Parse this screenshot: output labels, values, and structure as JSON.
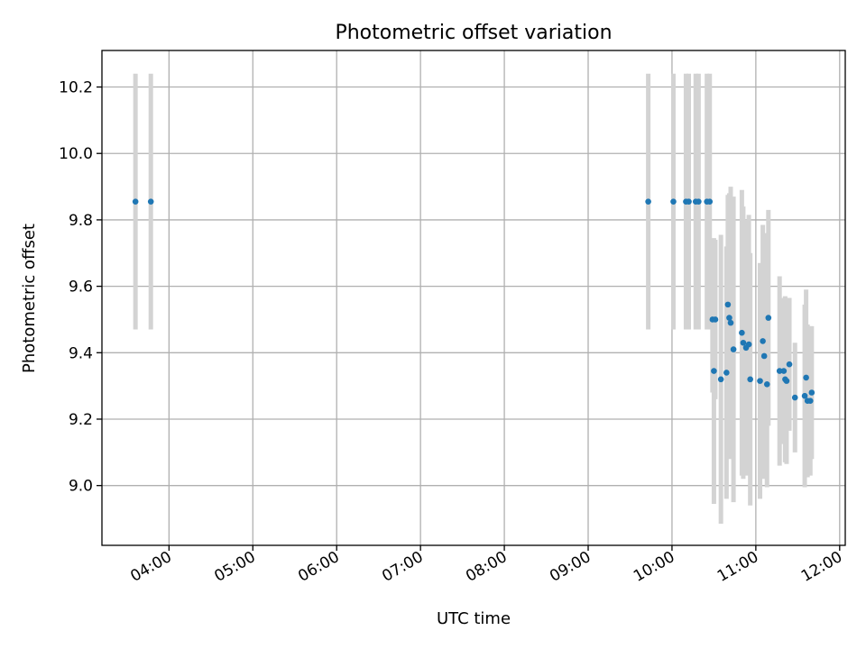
{
  "chart_data": {
    "type": "scatter",
    "title": "Photometric offset variation",
    "xlabel": "UTC time",
    "ylabel": "Photometric offset",
    "x_axis_type": "time",
    "xlim": [
      "03:12",
      "12:04"
    ],
    "ylim": [
      8.82,
      10.31
    ],
    "xticks": [
      "04:00",
      "05:00",
      "06:00",
      "07:00",
      "08:00",
      "09:00",
      "10:00",
      "11:00",
      "12:00"
    ],
    "yticks": [
      9.0,
      9.2,
      9.4,
      9.6,
      9.8,
      10.0,
      10.2
    ],
    "grid": true,
    "legend": "none",
    "colors": {
      "points": "#1f77b4",
      "errorbars": "#d3d3d3"
    },
    "points": [
      {
        "x": "03:36",
        "y": 9.855,
        "err": 0.385
      },
      {
        "x": "03:47",
        "y": 9.855,
        "err": 0.385
      },
      {
        "x": "09:43",
        "y": 9.855,
        "err": 0.385
      },
      {
        "x": "10:01",
        "y": 9.855,
        "err": 0.385
      },
      {
        "x": "10:10",
        "y": 9.855,
        "err": 0.385
      },
      {
        "x": "10:12",
        "y": 9.855,
        "err": 0.385
      },
      {
        "x": "10:17",
        "y": 9.855,
        "err": 0.385
      },
      {
        "x": "10:19",
        "y": 9.855,
        "err": 0.385
      },
      {
        "x": "10:25",
        "y": 9.855,
        "err": 0.385
      },
      {
        "x": "10:27",
        "y": 9.855,
        "err": 0.385
      },
      {
        "x": "10:29",
        "y": 9.5,
        "err": 0.22
      },
      {
        "x": "10:30",
        "y": 9.345,
        "err": 0.4
      },
      {
        "x": "10:31",
        "y": 9.5,
        "err": 0.24
      },
      {
        "x": "10:35",
        "y": 9.32,
        "err": 0.435
      },
      {
        "x": "10:39",
        "y": 9.34,
        "err": 0.38
      },
      {
        "x": "10:40",
        "y": 9.545,
        "err": 0.33
      },
      {
        "x": "10:41",
        "y": 9.505,
        "err": 0.375
      },
      {
        "x": "10:42",
        "y": 9.49,
        "err": 0.41
      },
      {
        "x": "10:44",
        "y": 9.41,
        "err": 0.46
      },
      {
        "x": "10:50",
        "y": 9.46,
        "err": 0.43
      },
      {
        "x": "10:51",
        "y": 9.43,
        "err": 0.41
      },
      {
        "x": "10:53",
        "y": 9.415,
        "err": 0.385
      },
      {
        "x": "10:55",
        "y": 9.425,
        "err": 0.39
      },
      {
        "x": "10:56",
        "y": 9.32,
        "err": 0.38
      },
      {
        "x": "11:03",
        "y": 9.315,
        "err": 0.355
      },
      {
        "x": "11:05",
        "y": 9.435,
        "err": 0.35
      },
      {
        "x": "11:06",
        "y": 9.39,
        "err": 0.37
      },
      {
        "x": "11:08",
        "y": 9.305,
        "err": 0.31
      },
      {
        "x": "11:09",
        "y": 9.505,
        "err": 0.325
      },
      {
        "x": "11:17",
        "y": 9.345,
        "err": 0.285
      },
      {
        "x": "11:20",
        "y": 9.345,
        "err": 0.22
      },
      {
        "x": "11:21",
        "y": 9.32,
        "err": 0.25
      },
      {
        "x": "11:22",
        "y": 9.315,
        "err": 0.25
      },
      {
        "x": "11:24",
        "y": 9.365,
        "err": 0.2
      },
      {
        "x": "11:28",
        "y": 9.265,
        "err": 0.165
      },
      {
        "x": "11:35",
        "y": 9.27,
        "err": 0.275
      },
      {
        "x": "11:36",
        "y": 9.325,
        "err": 0.265
      },
      {
        "x": "11:37",
        "y": 9.255,
        "err": 0.23
      },
      {
        "x": "11:39",
        "y": 9.255,
        "err": 0.225
      },
      {
        "x": "11:40",
        "y": 9.28,
        "err": 0.2
      }
    ]
  }
}
